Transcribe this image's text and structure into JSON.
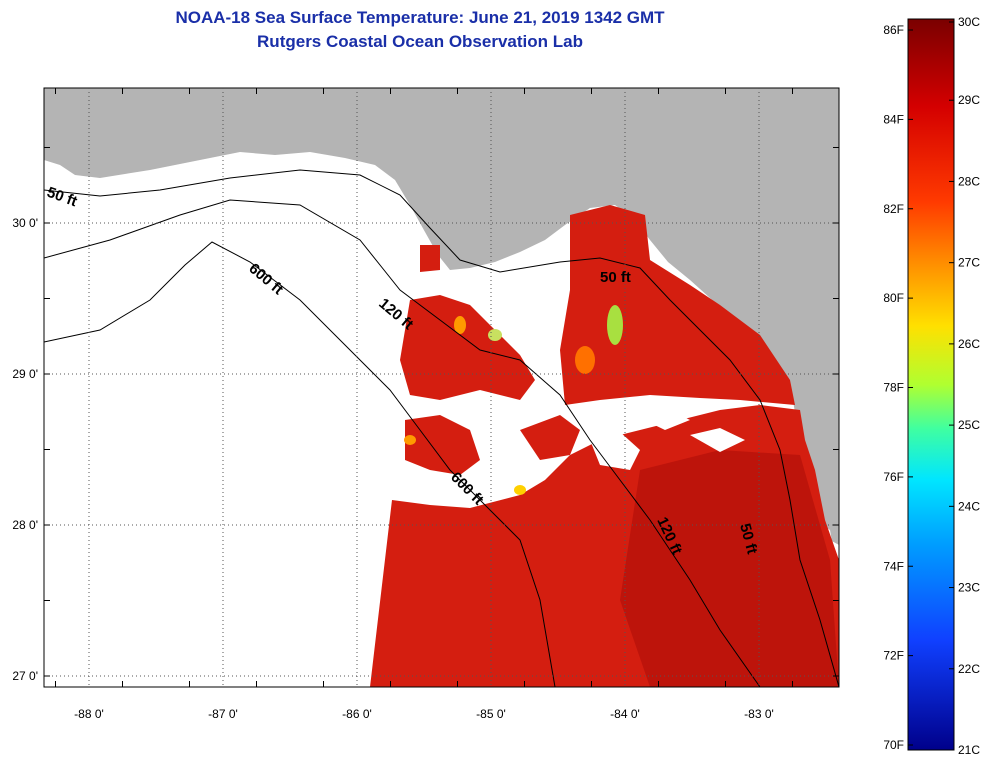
{
  "title": "NOAA-18 Sea Surface Temperature:  June 21, 2019 1342 GMT",
  "subtitle": "Rutgers Coastal Ocean Observation Lab",
  "colors": {
    "land": "#b4b4b4",
    "cloud": "#ffffff",
    "water_warm": "#d41e10",
    "water_hot": "#b40f0a",
    "contour": "#000000"
  },
  "map": {
    "lat_labels": [
      {
        "lat": 30,
        "label": "30 0'"
      },
      {
        "lat": 29,
        "label": "29 0'"
      },
      {
        "lat": 28,
        "label": "28 0'"
      },
      {
        "lat": 27,
        "label": "27 0'"
      }
    ],
    "lon_labels": [
      {
        "lon": -88,
        "label": "-88 0'"
      },
      {
        "lon": -87,
        "label": "-87 0'"
      },
      {
        "lon": -86,
        "label": "-86 0'"
      },
      {
        "lon": -85,
        "label": "-85 0'"
      },
      {
        "lon": -84,
        "label": "-84 0'"
      },
      {
        "lon": -83,
        "label": "-83 0'"
      }
    ],
    "contour_labels": [
      {
        "text": "50 ft"
      },
      {
        "text": "600 ft"
      },
      {
        "text": "120 ft"
      },
      {
        "text": "600 ft"
      },
      {
        "text": "50 ft"
      },
      {
        "text": "120 ft"
      },
      {
        "text": "50 ft"
      }
    ]
  },
  "colorbar": {
    "fahrenheit": [
      "86F",
      "84F",
      "82F",
      "80F",
      "78F",
      "76F",
      "74F",
      "72F",
      "70F"
    ],
    "celsius": [
      "30C",
      "29C",
      "28C",
      "27C",
      "26C",
      "25C",
      "24C",
      "23C",
      "22C",
      "21C"
    ]
  }
}
